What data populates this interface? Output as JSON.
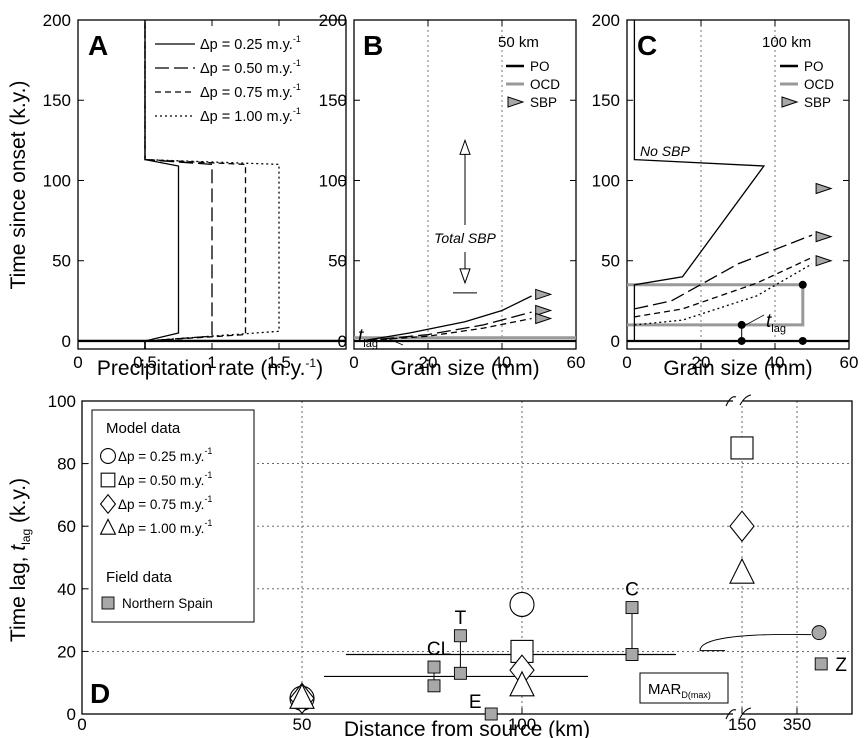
{
  "chart_data": [
    {
      "panel": "A",
      "type": "line",
      "ylabel": "Time since onset (k.y.)",
      "xlabel": "Precipitation rate (m.y.",
      "xlabel_sup": "-1",
      "xlabel_close": ")",
      "xlim": [
        0,
        2
      ],
      "ylim": [
        -5,
        200
      ],
      "xticks": [
        0,
        0.5,
        1,
        1.5
      ],
      "xtick_labels": [
        "0",
        "0.5",
        "1",
        "1.5"
      ],
      "yticks": [
        0,
        50,
        100,
        150,
        200
      ],
      "grid": false,
      "legend": "top-right",
      "series": [
        {
          "name": "Δp = 0.25 m.y.",
          "dash": "",
          "x": [
            0.5,
            0.5,
            0.75,
            0.75,
            0.5,
            0.5
          ],
          "y": [
            -5,
            0,
            5,
            109,
            113,
            200
          ]
        },
        {
          "name": "Δp = 0.50 m.y.",
          "dash": "14,5",
          "x": [
            0.5,
            0.5,
            1.0,
            1.0,
            0.5,
            0.5
          ],
          "y": [
            -5,
            0,
            3,
            110,
            113,
            200
          ]
        },
        {
          "name": "Δp = 0.75 m.y.",
          "dash": "6,4",
          "x": [
            0.5,
            0.5,
            1.25,
            1.25,
            0.5,
            0.5
          ],
          "y": [
            -5,
            0,
            4,
            110,
            113,
            200
          ]
        },
        {
          "name": "Δp = 1.00 m.y.",
          "dash": "2,3",
          "x": [
            0.5,
            0.5,
            1.5,
            1.5,
            0.5,
            0.5
          ],
          "y": [
            -5,
            0,
            6,
            110,
            113,
            200
          ]
        }
      ],
      "hlines": [
        0
      ]
    },
    {
      "panel": "B",
      "type": "line",
      "xlabel": "Grain size (mm)",
      "title": "50 km",
      "xlim": [
        0,
        60
      ],
      "ylim": [
        -5,
        200
      ],
      "xticks": [
        0,
        20,
        40,
        60
      ],
      "yticks": [
        0,
        50,
        100,
        150,
        200
      ],
      "vgrid": [
        20,
        40
      ],
      "legend": "top-right",
      "legend_entries": [
        "PO",
        "OCD",
        "SBP"
      ],
      "series": [
        {
          "dash": "",
          "x": [
            2,
            15,
            30,
            40,
            48
          ],
          "y": [
            0,
            5,
            12,
            19,
            28
          ]
        },
        {
          "dash": "14,5",
          "x": [
            2,
            20,
            35,
            48
          ],
          "y": [
            0,
            4,
            10,
            18
          ]
        },
        {
          "dash": "6,4",
          "x": [
            2,
            20,
            35,
            48
          ],
          "y": [
            0,
            3,
            8,
            14
          ]
        }
      ],
      "PO_y": 0,
      "OCD_y": 2,
      "SBP_markers": [
        {
          "x": 51,
          "y": 29
        },
        {
          "x": 51,
          "y": 19
        },
        {
          "x": 51,
          "y": 14
        }
      ],
      "annotations": {
        "total_sbp": "Total SBP",
        "arrow_y": [
          30,
          125
        ],
        "tlag_main": "t",
        "tlag_sub": "lag"
      }
    },
    {
      "panel": "C",
      "type": "line",
      "xlabel": "Grain size (mm)",
      "title": "100 km",
      "xlim": [
        0,
        60
      ],
      "ylim": [
        -5,
        200
      ],
      "xticks": [
        0,
        20,
        40,
        60
      ],
      "yticks": [
        0,
        50,
        100,
        150,
        200
      ],
      "vgrid": [
        20,
        40
      ],
      "legend": "top-right",
      "legend_entries": [
        "PO",
        "OCD",
        "SBP"
      ],
      "series": [
        {
          "dash": "",
          "x": [
            2,
            2,
            37,
            15,
            2,
            2
          ],
          "y": [
            200,
            113,
            109,
            40,
            35,
            0
          ]
        },
        {
          "dash": "14,5",
          "x": [
            2,
            12,
            30,
            50
          ],
          "y": [
            20,
            25,
            48,
            66
          ]
        },
        {
          "dash": "6,4",
          "x": [
            2,
            15,
            35,
            50
          ],
          "y": [
            15,
            20,
            36,
            52
          ]
        },
        {
          "dash": "2,3",
          "x": [
            2,
            15,
            35,
            50
          ],
          "y": [
            10,
            13,
            28,
            48
          ]
        }
      ],
      "PO_y": 0,
      "OCD": {
        "x": [
          0,
          47.5,
          47.5,
          0
        ],
        "y": [
          35,
          35,
          10,
          10
        ]
      },
      "points": [
        {
          "x": 31,
          "y": 10
        },
        {
          "x": 31,
          "y": 0
        },
        {
          "x": 47.5,
          "y": 35
        },
        {
          "x": 47.5,
          "y": 0
        }
      ],
      "SBP_markers": [
        {
          "x": 53,
          "y": 95
        },
        {
          "x": 53,
          "y": 65
        },
        {
          "x": 53,
          "y": 50
        }
      ],
      "annotations": {
        "no_sbp": "No SBP",
        "tlag_main": "t",
        "tlag_sub": "lag"
      }
    },
    {
      "panel": "D",
      "type": "scatter",
      "xlabel": "Distance from source (km)",
      "ylabel": "Time lag,",
      "ylabel_t": "t",
      "ylabel_sub": "lag",
      "ylabel_unit": "(k.y.)",
      "xlim": [
        0,
        175
      ],
      "ylim": [
        0,
        100
      ],
      "xticks": [
        0,
        50,
        100,
        150
      ],
      "xtick_labels": [
        "0",
        "50",
        "100",
        "150"
      ],
      "broken_axis_tick": "350",
      "yticks": [
        0,
        20,
        40,
        60,
        80,
        100
      ],
      "grid": true,
      "legend": "top-left",
      "model_title": "Model data",
      "field_title": "Field data",
      "model_entries": [
        {
          "marker": "circle",
          "label": "Δp = 0.25 m.y."
        },
        {
          "marker": "square",
          "label": "Δp = 0.50 m.y."
        },
        {
          "marker": "diamond",
          "label": "Δp = 0.75 m.y."
        },
        {
          "marker": "triangle",
          "label": "Δp = 1.00 m.y."
        }
      ],
      "field_entry": "Northern Spain",
      "unit_sup": "-1",
      "model_points": [
        {
          "marker": "circle",
          "x": 50,
          "y": 5
        },
        {
          "marker": "diamond",
          "x": 50,
          "y": 5
        },
        {
          "marker": "triangle",
          "x": 50,
          "y": 5
        },
        {
          "marker": "circle",
          "x": 100,
          "y": 35
        },
        {
          "marker": "square",
          "x": 100,
          "y": 20
        },
        {
          "marker": "diamond",
          "x": 100,
          "y": 14
        },
        {
          "marker": "triangle",
          "x": 100,
          "y": 9
        },
        {
          "marker": "square",
          "x": 150,
          "y": 85
        },
        {
          "marker": "diamond",
          "x": 150,
          "y": 60
        },
        {
          "marker": "triangle",
          "x": 150,
          "y": 45
        }
      ],
      "hbars": [
        {
          "x0": 60,
          "x1": 135,
          "y": 19
        },
        {
          "x0": 55,
          "x1": 115,
          "y": 12
        }
      ],
      "field_sites": [
        {
          "label": "CL",
          "x": 80,
          "y": [
            9,
            15
          ]
        },
        {
          "label": "T",
          "x": 86,
          "y": [
            13,
            25
          ]
        },
        {
          "label": "E",
          "x": 93,
          "y": [
            0
          ]
        },
        {
          "label": "C",
          "x": 125,
          "y": [
            19,
            34
          ]
        },
        {
          "label": "Z",
          "x": 168,
          "y": [
            16
          ]
        }
      ],
      "mar_point": {
        "x": 167.5,
        "y": 26
      },
      "mar_label": "MAR",
      "mar_sub": "D(max)"
    }
  ],
  "panel_labels": [
    "A",
    "B",
    "C",
    "D"
  ]
}
